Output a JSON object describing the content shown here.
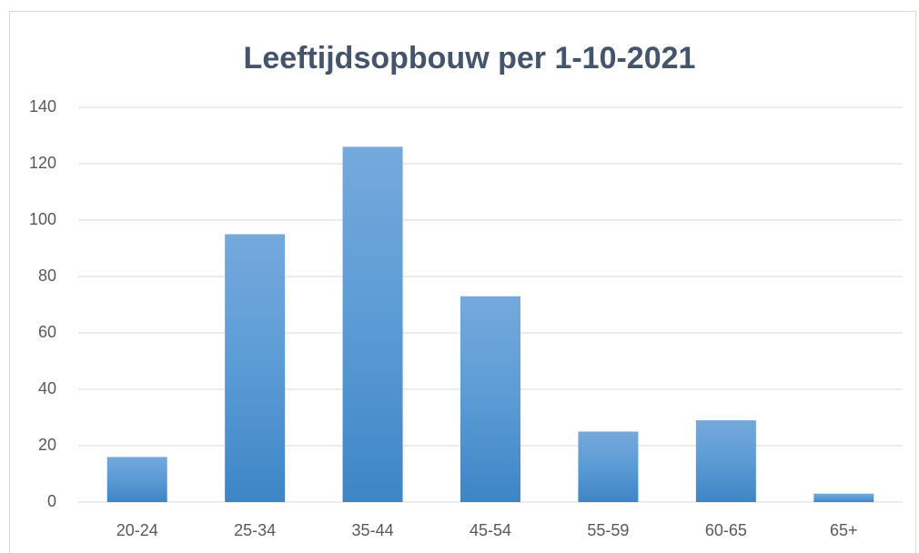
{
  "chart_data": {
    "type": "bar",
    "title": "Leeftijdsopbouw per 1-10-2021",
    "categories": [
      "20-24",
      "25-34",
      "35-44",
      "45-54",
      "55-59",
      "60-65",
      "65+"
    ],
    "values": [
      16,
      95,
      126,
      73,
      25,
      29,
      3
    ],
    "color": "#5b9bd5",
    "ylim": [
      0,
      140
    ],
    "yticks": [
      0,
      20,
      40,
      60,
      80,
      100,
      120,
      140
    ],
    "grid": true
  }
}
